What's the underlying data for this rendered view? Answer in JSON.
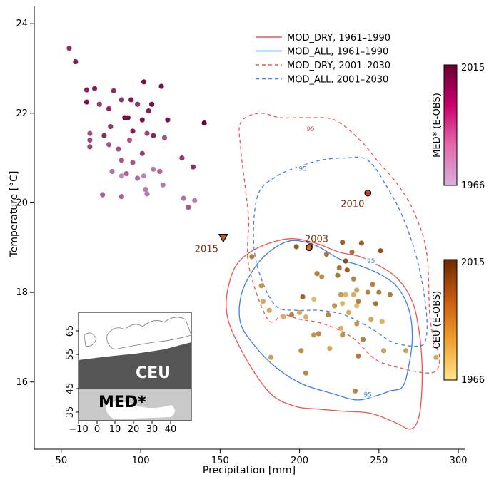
{
  "chart_data": {
    "type": "scatter",
    "xlabel": "Precipitation [mm]",
    "ylabel": "Temperature [°C]",
    "xlim": [
      33,
      304
    ],
    "ylim": [
      14.5,
      24.4
    ],
    "x_ticks": [
      50,
      100,
      150,
      200,
      250,
      300
    ],
    "y_ticks": [
      16,
      18,
      20,
      22,
      24
    ],
    "grid": false,
    "legend": {
      "placement": "top-right",
      "entries": [
        {
          "label": "MOD_DRY, 1961–1990",
          "color": "#f0524f",
          "dash": "solid"
        },
        {
          "label": "MOD_ALL, 1961–1990",
          "color": "#3f7fe6",
          "dash": "solid"
        },
        {
          "label": "MOD_DRY, 2001–2030",
          "color": "#f0524f",
          "dash": "dashed"
        },
        {
          "label": "MOD_ALL, 2001–2030",
          "color": "#3f7fe6",
          "dash": "dashed"
        }
      ]
    },
    "contour_label": "95",
    "contours": [
      {
        "series": "MOD_DRY, 1961–1990",
        "color": "#f0524f",
        "dash": "solid",
        "points": [
          [
            169,
            18.9
          ],
          [
            181,
            19.1
          ],
          [
            195,
            19.2
          ],
          [
            210,
            19.1
          ],
          [
            225,
            18.9
          ],
          [
            238,
            18.8
          ],
          [
            250,
            18.6
          ],
          [
            262,
            18.3
          ],
          [
            271,
            17.8
          ],
          [
            275,
            17.2
          ],
          [
            277,
            16.5
          ],
          [
            277,
            15.8
          ],
          [
            275,
            15.2
          ],
          [
            270,
            14.95
          ],
          [
            260,
            15.1
          ],
          [
            245,
            15.3
          ],
          [
            227,
            15.35
          ],
          [
            210,
            15.4
          ],
          [
            198,
            15.45
          ],
          [
            183,
            15.7
          ],
          [
            170,
            16.3
          ],
          [
            158,
            17.1
          ],
          [
            154,
            17.6
          ],
          [
            155,
            18.1
          ],
          [
            160,
            18.6
          ]
        ]
      },
      {
        "series": "MOD_ALL, 1961–1990",
        "color": "#3f7fe6",
        "dash": "solid",
        "points": [
          [
            179,
            18.85
          ],
          [
            194,
            19.15
          ],
          [
            210,
            19.05
          ],
          [
            225,
            18.75
          ],
          [
            238,
            18.6
          ],
          [
            251,
            18.4
          ],
          [
            262,
            18.1
          ],
          [
            269,
            17.6
          ],
          [
            271,
            17.0
          ],
          [
            269,
            16.4
          ],
          [
            265,
            15.9
          ],
          [
            257,
            15.8
          ],
          [
            249,
            15.7
          ],
          [
            236,
            15.6
          ],
          [
            220,
            15.75
          ],
          [
            202,
            15.95
          ],
          [
            186,
            16.3
          ],
          [
            172,
            16.8
          ],
          [
            163,
            17.3
          ],
          [
            163,
            17.9
          ],
          [
            169,
            18.4
          ]
        ]
      },
      {
        "series": "MOD_DRY, 2001–2030",
        "color": "#f0524f",
        "dash": "dashed",
        "points": [
          [
            205,
            21.9
          ],
          [
            222,
            21.85
          ],
          [
            238,
            21.4
          ],
          [
            250,
            20.9
          ],
          [
            262,
            20.4
          ],
          [
            272,
            19.8
          ],
          [
            280,
            18.9
          ],
          [
            282,
            17.5
          ],
          [
            285,
            16.9
          ],
          [
            288,
            16.6
          ],
          [
            287,
            16.3
          ],
          [
            281,
            16.2
          ],
          [
            265,
            16.3
          ],
          [
            248,
            16.5
          ],
          [
            233,
            17.0
          ],
          [
            215,
            17.3
          ],
          [
            200,
            17.4
          ],
          [
            190,
            17.5
          ],
          [
            180,
            17.4
          ],
          [
            168,
            18.6
          ],
          [
            168,
            19.6
          ],
          [
            166,
            20.3
          ],
          [
            163,
            21.2
          ],
          [
            163,
            21.8
          ],
          [
            175,
            22.0
          ],
          [
            188,
            21.9
          ]
        ]
      },
      {
        "series": "MOD_ALL, 2001–2030",
        "color": "#3f7fe6",
        "dash": "dashed",
        "points": [
          [
            199,
            20.8
          ],
          [
            213,
            20.95
          ],
          [
            228,
            21.0
          ],
          [
            243,
            20.95
          ],
          [
            256,
            20.3
          ],
          [
            266,
            19.6
          ],
          [
            275,
            18.6
          ],
          [
            280,
            17.5
          ],
          [
            279,
            16.9
          ],
          [
            272,
            16.8
          ],
          [
            258,
            16.9
          ],
          [
            245,
            17.2
          ],
          [
            228,
            17.5
          ],
          [
            212,
            17.6
          ],
          [
            198,
            17.6
          ],
          [
            185,
            17.7
          ],
          [
            175,
            18.4
          ],
          [
            171,
            19.2
          ],
          [
            174,
            20.2
          ],
          [
            186,
            20.6
          ]
        ]
      }
    ],
    "series": [
      {
        "name": "MED* (E-OBS)",
        "colorbar_range": [
          1966,
          2015
        ],
        "color_low": "#d8aee0",
        "color_high": "#6b0036",
        "points": [
          [
            55,
            23.45,
            0.72
          ],
          [
            59,
            23.15,
            0.85
          ],
          [
            66,
            22.52,
            0.78
          ],
          [
            71,
            22.55,
            0.8
          ],
          [
            83,
            22.5,
            0.72
          ],
          [
            88,
            22.3,
            0.7
          ],
          [
            94,
            22.3,
            0.86
          ],
          [
            102,
            22.7,
            0.92
          ],
          [
            113,
            22.6,
            0.87
          ],
          [
            66,
            22.25,
            0.9
          ],
          [
            74,
            22.2,
            0.66
          ],
          [
            80,
            22.1,
            0.75
          ],
          [
            98,
            22.2,
            0.7
          ],
          [
            105,
            22.05,
            0.82
          ],
          [
            107,
            22.2,
            0.9
          ],
          [
            117,
            21.85,
            0.86
          ],
          [
            140,
            21.78,
            1.0
          ],
          [
            90,
            21.9,
            0.95
          ],
          [
            92,
            21.9,
            0.92
          ],
          [
            81,
            21.7,
            0.7
          ],
          [
            101,
            21.85,
            0.88
          ],
          [
            68,
            21.55,
            0.55
          ],
          [
            77,
            21.5,
            0.75
          ],
          [
            95,
            21.6,
            0.82
          ],
          [
            104,
            21.55,
            0.62
          ],
          [
            68,
            21.4,
            0.6
          ],
          [
            93,
            21.4,
            0.5
          ],
          [
            108,
            21.5,
            0.78
          ],
          [
            115,
            21.45,
            0.52
          ],
          [
            68,
            21.25,
            0.58
          ],
          [
            80,
            21.3,
            0.5
          ],
          [
            86,
            21.2,
            0.55
          ],
          [
            101,
            21.1,
            0.62
          ],
          [
            126,
            21.0,
            0.7
          ],
          [
            88,
            20.95,
            0.5
          ],
          [
            95,
            20.9,
            0.48
          ],
          [
            133,
            20.8,
            0.7
          ],
          [
            82,
            20.7,
            0.35
          ],
          [
            91,
            20.65,
            0.45
          ],
          [
            98,
            20.55,
            0.4
          ],
          [
            108,
            20.75,
            0.3
          ],
          [
            112,
            20.7,
            0.45
          ],
          [
            88,
            20.6,
            0.2
          ],
          [
            102,
            20.6,
            0.25
          ],
          [
            114,
            20.4,
            0.3
          ],
          [
            103,
            20.3,
            0.28
          ],
          [
            76,
            20.18,
            0.42
          ],
          [
            88,
            20.14,
            0.44
          ],
          [
            104,
            20.2,
            0.32
          ],
          [
            127,
            20.1,
            0.34
          ],
          [
            134,
            20.05,
            0.3
          ],
          [
            130,
            19.9,
            0.5
          ]
        ]
      },
      {
        "name": "CEU (E-OBS)",
        "colorbar_range": [
          1966,
          2015
        ],
        "color_low": "#ffe48c",
        "color_high": "#6b2a00",
        "points": [
          [
            198,
            19.02,
            0.72
          ],
          [
            207,
            19.05,
            0.84
          ],
          [
            227,
            19.12,
            0.72
          ],
          [
            233,
            18.9,
            0.62
          ],
          [
            239,
            19.1,
            0.72
          ],
          [
            251,
            18.93,
            0.78
          ],
          [
            217,
            18.85,
            0.58
          ],
          [
            229,
            18.7,
            0.82
          ],
          [
            225,
            18.55,
            0.58
          ],
          [
            230,
            18.5,
            0.72
          ],
          [
            234,
            18.3,
            0.5
          ],
          [
            170,
            18.8,
            0.55
          ],
          [
            211,
            18.42,
            0.52
          ],
          [
            224,
            18.38,
            0.58
          ],
          [
            214,
            18.35,
            0.45
          ],
          [
            246,
            18.18,
            0.5
          ],
          [
            176,
            18.15,
            0.42
          ],
          [
            236,
            18.05,
            0.32
          ],
          [
            226,
            17.95,
            0.4
          ],
          [
            234,
            17.95,
            0.28
          ],
          [
            243,
            18.0,
            0.52
          ],
          [
            250,
            18.0,
            0.52
          ],
          [
            229,
            17.95,
            0.24
          ],
          [
            202,
            17.9,
            0.66
          ],
          [
            177,
            17.8,
            0.3
          ],
          [
            209,
            17.85,
            0.2
          ],
          [
            237,
            17.8,
            0.52
          ],
          [
            248,
            17.75,
            0.62
          ],
          [
            257,
            17.95,
            0.55
          ],
          [
            222,
            17.7,
            0.42
          ],
          [
            227,
            17.75,
            0.24
          ],
          [
            236,
            17.7,
            0.2
          ],
          [
            181,
            17.6,
            0.32
          ],
          [
            200,
            17.55,
            0.34
          ],
          [
            204,
            17.45,
            0.28
          ],
          [
            195,
            17.5,
            0.52
          ],
          [
            218,
            17.5,
            0.5
          ],
          [
            231,
            17.55,
            0.3
          ],
          [
            190,
            17.45,
            0.28
          ],
          [
            236,
            17.3,
            0.42
          ],
          [
            245,
            17.4,
            0.32
          ],
          [
            252,
            17.35,
            0.24
          ],
          [
            226,
            17.2,
            0.3
          ],
          [
            209,
            17.05,
            0.42
          ],
          [
            212,
            17.08,
            0.48
          ],
          [
            227,
            17.05,
            0.45
          ],
          [
            240,
            16.95,
            0.52
          ],
          [
            201,
            16.7,
            0.45
          ],
          [
            219,
            16.75,
            0.32
          ],
          [
            253,
            16.7,
            0.36
          ],
          [
            267,
            16.7,
            0.35
          ],
          [
            237,
            16.58,
            0.55
          ],
          [
            182,
            16.55,
            0.36
          ],
          [
            204,
            16.2,
            0.5
          ],
          [
            286,
            16.55,
            0.3
          ],
          [
            235,
            15.8,
            0.5
          ]
        ]
      }
    ],
    "highlights": [
      {
        "label": "2010",
        "x": 243,
        "y": 20.22,
        "shape": "circle",
        "color": "#c0462f"
      },
      {
        "label": "2003",
        "x": 206,
        "y": 19.0,
        "shape": "circle",
        "color": "#d06a20"
      },
      {
        "label": "2015",
        "x": 152,
        "y": 19.22,
        "shape": "triangle",
        "color": "#b8602a"
      }
    ],
    "colorbars": [
      {
        "label": "MED* (E-OBS)",
        "top": "2015",
        "bottom": "1966",
        "stops": [
          "#6b0036",
          "#c8006e",
          "#e46aaa",
          "#d8aee0"
        ]
      },
      {
        "label": "CEU (E-OBS)",
        "top": "2015",
        "bottom": "1966",
        "stops": [
          "#6b2a00",
          "#c85a10",
          "#f0a030",
          "#ffe48c"
        ]
      }
    ],
    "inset_map": {
      "regions": [
        "CEU",
        "MED*"
      ],
      "lon_ticks": [
        "−10",
        "0",
        "10",
        "20",
        "30",
        "40"
      ],
      "lat_ticks": [
        "65",
        "55",
        "45",
        "35"
      ]
    }
  }
}
